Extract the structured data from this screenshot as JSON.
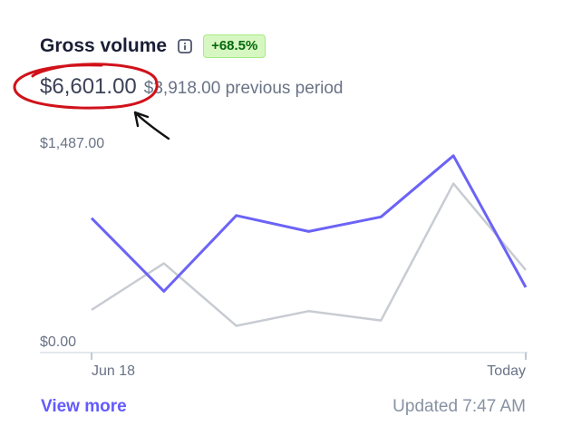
{
  "header": {
    "title": "Gross volume",
    "info_icon": "info-icon",
    "change_badge": "+68.5%",
    "badge_color": "#05690d"
  },
  "summary": {
    "current_value": "$6,601.00",
    "previous_value": "$3,918.00 previous period"
  },
  "footer": {
    "link": "View more",
    "updated": "Updated 7:47 AM"
  },
  "colors": {
    "current_series": "#6b63f6",
    "previous_series": "#c8ccd2",
    "annotation": "#d0121b"
  },
  "chart_data": {
    "type": "line",
    "ylim": [
      0,
      1487
    ],
    "y_tick_labels": [
      "$1,487.00",
      "$0.00"
    ],
    "x_tick_labels": [
      "Jun 18",
      "Today"
    ],
    "x": [
      0,
      1,
      2,
      3,
      4,
      5,
      6
    ],
    "series": [
      {
        "key": "current",
        "values": [
          950,
          400,
          970,
          850,
          960,
          1420,
          430
        ]
      },
      {
        "key": "previous",
        "values": [
          260,
          610,
          140,
          250,
          180,
          1210,
          560
        ]
      }
    ],
    "grid": false
  }
}
